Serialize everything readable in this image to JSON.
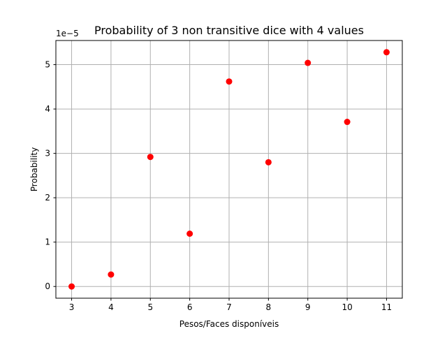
{
  "chart_data": {
    "type": "scatter",
    "title": "Probability of 3 non transitive dice with 4 values",
    "xlabel": "Pesos/Faces disponíveis",
    "ylabel": "Probability",
    "y_offset_label": "1e−5",
    "y_scale_factor": 1e-05,
    "x": [
      3,
      4,
      5,
      6,
      7,
      8,
      9,
      10,
      11
    ],
    "series": [
      {
        "values": [
          0.0,
          0.27,
          2.92,
          1.19,
          4.62,
          2.8,
          5.04,
          3.71,
          5.28
        ],
        "color": "#ff0000",
        "marker": "circle"
      }
    ],
    "xlim": [
      2.6,
      11.4
    ],
    "ylim": [
      -0.264,
      5.544
    ],
    "x_ticks": [
      "3",
      "4",
      "5",
      "6",
      "7",
      "8",
      "9",
      "10",
      "11"
    ],
    "y_ticks": [
      "0",
      "1",
      "2",
      "3",
      "4",
      "5"
    ],
    "grid": true,
    "grid_color": "#b0b0b0"
  }
}
